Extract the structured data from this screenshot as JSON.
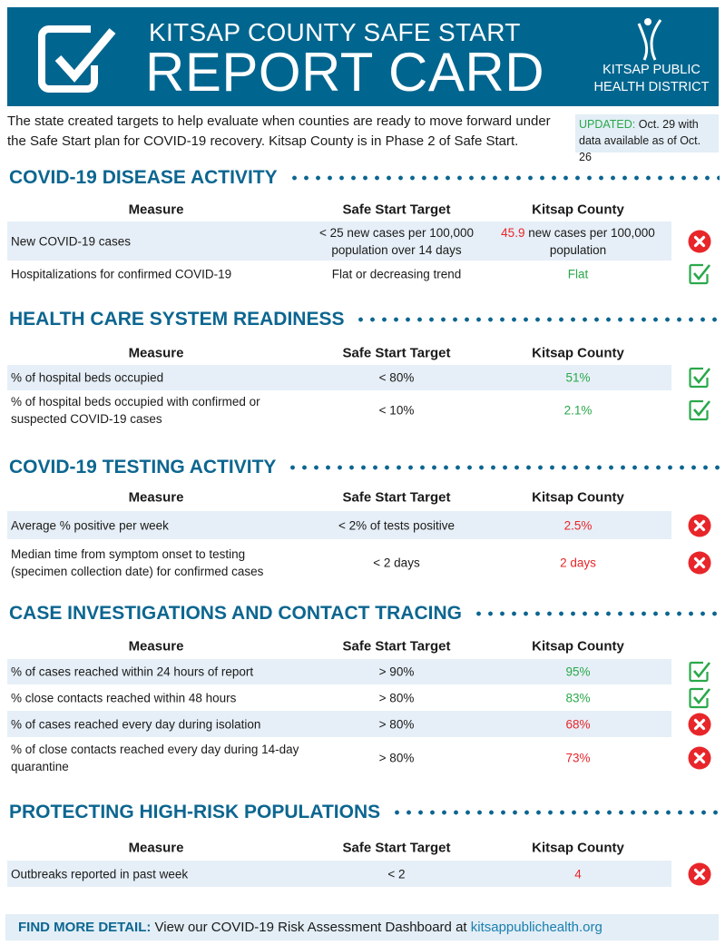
{
  "header": {
    "line1": "KITSAP COUNTY SAFE START",
    "line2": "REPORT CARD",
    "org_line1": "KITSAP PUBLIC",
    "org_line2": "HEALTH DISTRICT"
  },
  "intro": "The state created targets to help evaluate when counties are ready to move forward under the Safe Start plan for COVID-19 recovery. Kitsap County is in Phase 2 of Safe Start.",
  "updated": {
    "label": "UPDATED:",
    "text": " Oct. 29 with data available as of Oct. 26"
  },
  "columns": {
    "measure": "Measure",
    "target": "Safe Start  Target",
    "county": "Kitsap County"
  },
  "colors": {
    "brand": "#00668f",
    "pass": "#2aa84a",
    "fail": "#e8262a"
  },
  "sections": [
    {
      "title": "COVID-19 DISEASE ACTIVITY",
      "rows": [
        {
          "measure": "New COVID-19 cases",
          "target": "< 25 new cases per 100,000 population over 14 days",
          "value_highlight": "45.9",
          "value": " new cases per 100,000 population",
          "status": "fail"
        },
        {
          "measure": "Hospitalizations for confirmed COVID-19",
          "target": "Flat or decreasing trend",
          "value": "Flat",
          "status": "pass"
        }
      ]
    },
    {
      "title": "HEALTH CARE SYSTEM READINESS",
      "rows": [
        {
          "measure": "% of hospital beds occupied",
          "target": "< 80%",
          "value": "51%",
          "status": "pass"
        },
        {
          "measure": "% of hospital beds occupied with confirmed or suspected COVID-19 cases",
          "target": "< 10%",
          "value": "2.1%",
          "status": "pass"
        }
      ]
    },
    {
      "title": "COVID-19 TESTING ACTIVITY",
      "rows": [
        {
          "measure": "Average % positive per week",
          "target": "< 2% of tests positive",
          "value": "2.5%",
          "status": "fail"
        },
        {
          "measure": "Median time from symptom onset to testing (specimen collection date) for confirmed cases",
          "target": "< 2 days",
          "value": "2 days",
          "status": "fail"
        }
      ]
    },
    {
      "title": "CASE INVESTIGATIONS AND CONTACT TRACING",
      "rows": [
        {
          "measure": "% of cases reached within 24 hours of report",
          "target": "> 90%",
          "value": "95%",
          "status": "pass"
        },
        {
          "measure": "% close contacts reached within 48 hours",
          "target": "> 80%",
          "value": "83%",
          "status": "pass"
        },
        {
          "measure": "% of cases reached every day during isolation",
          "target": "> 80%",
          "value": "68%",
          "status": "fail"
        },
        {
          "measure": "% of close contacts reached every day during 14-day quarantine",
          "target": "> 80%",
          "value": "73%",
          "status": "fail"
        }
      ]
    },
    {
      "title": "PROTECTING HIGH-RISK POPULATIONS",
      "rows": [
        {
          "measure": "Outbreaks reported in past week",
          "target": "< 2",
          "value": "4",
          "status": "fail"
        }
      ]
    }
  ],
  "footer": {
    "label": "FIND MORE DETAIL:",
    "text": " View our COVID-19 Risk Assessment Dashboard at ",
    "link": "kitsappublichealth.org"
  }
}
